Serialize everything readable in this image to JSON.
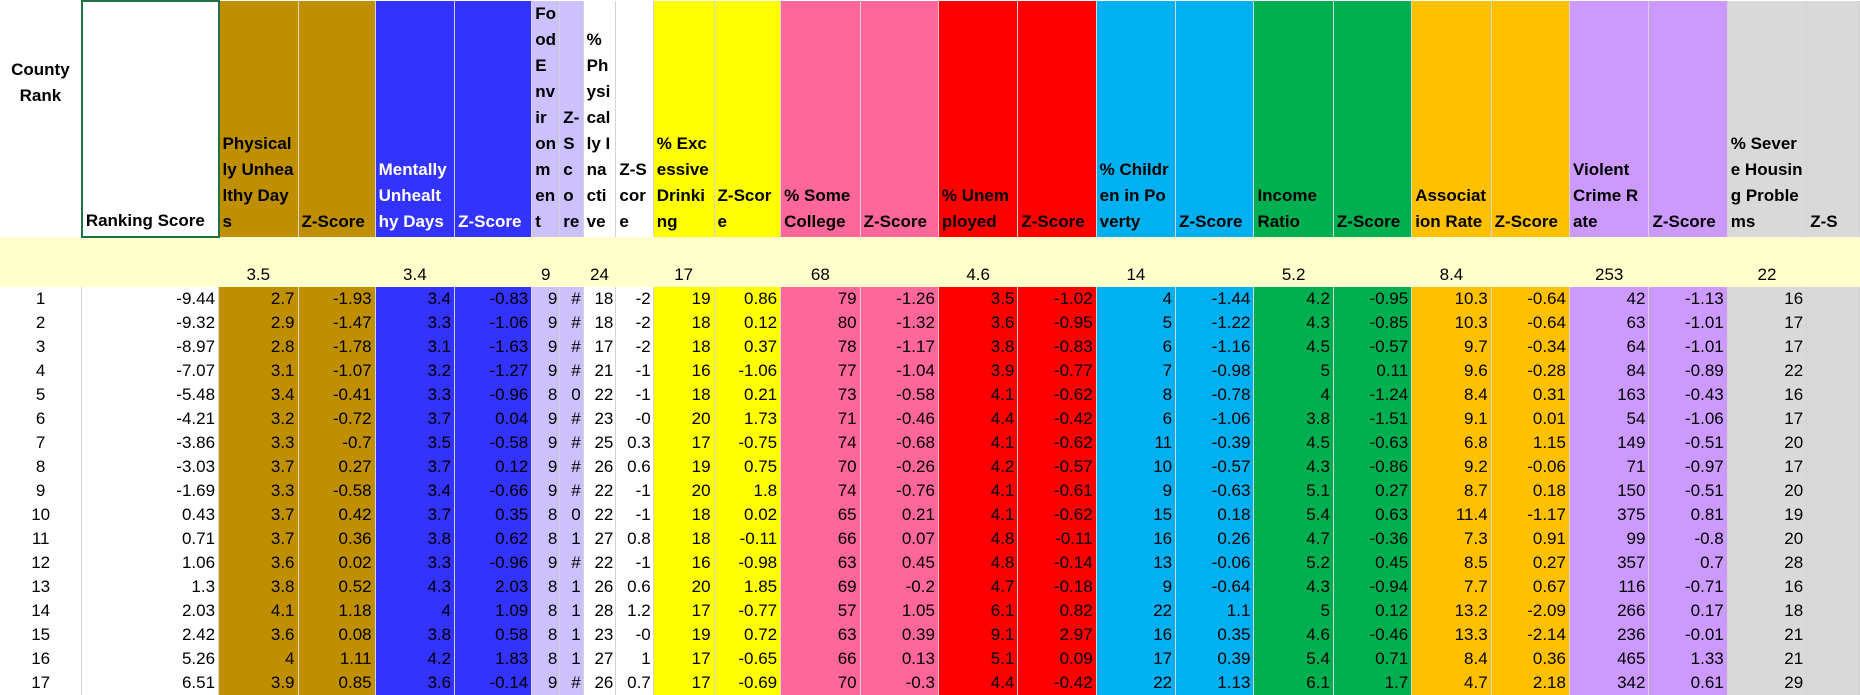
{
  "headers": {
    "county_rank": "County Rank",
    "ranking_score": "Ranking Score",
    "physically_unhealthy_days": "Physically Unhealthy Days",
    "mentally_unhealthy_days": "Mentally Unhealthy Days",
    "food_environment": "Food Environment",
    "z_score_narrow": "Z-Score",
    "pct_physically_inactive": "% Physically Inactive",
    "z_score": "Z-Score",
    "pct_excessive_drinking": "% Excessive Drinking",
    "pct_some_college": "% Some College",
    "pct_unemployed": "% Unemployed",
    "pct_children_in_poverty": "% Children in Poverty",
    "income_ratio": "Income Ratio",
    "association_rate": "Association Rate",
    "violent_crime_rate": "Violent Crime Rate",
    "pct_severe_housing_problems": "% Severe Housing Problems",
    "z_score_last": "Z-S"
  },
  "averages": {
    "physically_unhealthy_days": "3.5",
    "mentally_unhealthy_days": "3.4",
    "food_environment": "9",
    "pct_physically_inactive": "24",
    "pct_excessive_drinking": "17",
    "pct_some_college": "68",
    "pct_unemployed": "4.6",
    "pct_children_in_poverty": "14",
    "income_ratio": "5.2",
    "association_rate": "8.4",
    "violent_crime_rate": "253",
    "pct_severe_housing_problems": "22"
  },
  "rows": [
    [
      "1",
      "-9.44",
      "2.7",
      "-1.93",
      "3.4",
      "-0.83",
      "9",
      "#",
      "18",
      "-2",
      "19",
      "0.86",
      "79",
      "-1.26",
      "3.5",
      "-1.02",
      "4",
      "-1.44",
      "4.2",
      "-0.95",
      "10.3",
      "-0.64",
      "42",
      "-1.13",
      "16"
    ],
    [
      "2",
      "-9.32",
      "2.9",
      "-1.47",
      "3.3",
      "-1.06",
      "9",
      "#",
      "18",
      "-2",
      "18",
      "0.12",
      "80",
      "-1.32",
      "3.6",
      "-0.95",
      "5",
      "-1.22",
      "4.3",
      "-0.85",
      "10.3",
      "-0.64",
      "63",
      "-1.01",
      "17"
    ],
    [
      "3",
      "-8.97",
      "2.8",
      "-1.78",
      "3.1",
      "-1.63",
      "9",
      "#",
      "17",
      "-2",
      "18",
      "0.37",
      "78",
      "-1.17",
      "3.8",
      "-0.83",
      "6",
      "-1.16",
      "4.5",
      "-0.57",
      "9.7",
      "-0.34",
      "64",
      "-1.01",
      "17"
    ],
    [
      "4",
      "-7.07",
      "3.1",
      "-1.07",
      "3.2",
      "-1.27",
      "9",
      "#",
      "21",
      "-1",
      "16",
      "-1.06",
      "77",
      "-1.04",
      "3.9",
      "-0.77",
      "7",
      "-0.98",
      "5",
      "0.11",
      "9.6",
      "-0.28",
      "84",
      "-0.89",
      "22"
    ],
    [
      "5",
      "-5.48",
      "3.4",
      "-0.41",
      "3.3",
      "-0.96",
      "8",
      "0",
      "22",
      "-1",
      "18",
      "0.21",
      "73",
      "-0.58",
      "4.1",
      "-0.62",
      "8",
      "-0.78",
      "4",
      "-1.24",
      "8.4",
      "0.31",
      "163",
      "-0.43",
      "16"
    ],
    [
      "6",
      "-4.21",
      "3.2",
      "-0.72",
      "3.7",
      "0.04",
      "9",
      "#",
      "23",
      "-0",
      "20",
      "1.73",
      "71",
      "-0.46",
      "4.4",
      "-0.42",
      "6",
      "-1.06",
      "3.8",
      "-1.51",
      "9.1",
      "0.01",
      "54",
      "-1.06",
      "17"
    ],
    [
      "7",
      "-3.86",
      "3.3",
      "-0.7",
      "3.5",
      "-0.58",
      "9",
      "#",
      "25",
      "0.3",
      "17",
      "-0.75",
      "74",
      "-0.68",
      "4.1",
      "-0.62",
      "11",
      "-0.39",
      "4.5",
      "-0.63",
      "6.8",
      "1.15",
      "149",
      "-0.51",
      "20"
    ],
    [
      "8",
      "-3.03",
      "3.7",
      "0.27",
      "3.7",
      "0.12",
      "9",
      "#",
      "26",
      "0.6",
      "19",
      "0.75",
      "70",
      "-0.26",
      "4.2",
      "-0.57",
      "10",
      "-0.57",
      "4.3",
      "-0.86",
      "9.2",
      "-0.06",
      "71",
      "-0.97",
      "17"
    ],
    [
      "9",
      "-1.69",
      "3.3",
      "-0.58",
      "3.4",
      "-0.66",
      "9",
      "#",
      "22",
      "-1",
      "20",
      "1.8",
      "74",
      "-0.76",
      "4.1",
      "-0.61",
      "9",
      "-0.63",
      "5.1",
      "0.27",
      "8.7",
      "0.18",
      "150",
      "-0.51",
      "20"
    ],
    [
      "10",
      "0.43",
      "3.7",
      "0.42",
      "3.7",
      "0.35",
      "8",
      "0",
      "22",
      "-1",
      "18",
      "0.02",
      "65",
      "0.21",
      "4.1",
      "-0.62",
      "15",
      "0.18",
      "5.4",
      "0.63",
      "11.4",
      "-1.17",
      "375",
      "0.81",
      "19"
    ],
    [
      "11",
      "0.71",
      "3.7",
      "0.36",
      "3.8",
      "0.62",
      "8",
      "1",
      "27",
      "0.8",
      "18",
      "-0.11",
      "66",
      "0.07",
      "4.8",
      "-0.11",
      "16",
      "0.26",
      "4.7",
      "-0.36",
      "7.3",
      "0.91",
      "99",
      "-0.8",
      "20"
    ],
    [
      "12",
      "1.06",
      "3.6",
      "0.02",
      "3.3",
      "-0.96",
      "9",
      "#",
      "22",
      "-1",
      "16",
      "-0.98",
      "63",
      "0.45",
      "4.8",
      "-0.14",
      "13",
      "-0.06",
      "5.2",
      "0.45",
      "8.5",
      "0.27",
      "357",
      "0.7",
      "28"
    ],
    [
      "13",
      "1.3",
      "3.8",
      "0.52",
      "4.3",
      "2.03",
      "8",
      "1",
      "26",
      "0.6",
      "20",
      "1.85",
      "69",
      "-0.2",
      "4.7",
      "-0.18",
      "9",
      "-0.64",
      "4.3",
      "-0.94",
      "7.7",
      "0.67",
      "116",
      "-0.71",
      "16"
    ],
    [
      "14",
      "2.03",
      "4.1",
      "1.18",
      "4",
      "1.09",
      "8",
      "1",
      "28",
      "1.2",
      "17",
      "-0.77",
      "57",
      "1.05",
      "6.1",
      "0.82",
      "22",
      "1.1",
      "5",
      "0.12",
      "13.2",
      "-2.09",
      "266",
      "0.17",
      "18"
    ],
    [
      "15",
      "2.42",
      "3.6",
      "0.08",
      "3.8",
      "0.58",
      "8",
      "1",
      "23",
      "-0",
      "19",
      "0.72",
      "63",
      "0.39",
      "9.1",
      "2.97",
      "16",
      "0.35",
      "4.6",
      "-0.46",
      "13.3",
      "-2.14",
      "236",
      "-0.01",
      "21"
    ],
    [
      "16",
      "5.26",
      "4",
      "1.11",
      "4.2",
      "1.83",
      "8",
      "1",
      "27",
      "1",
      "17",
      "-0.65",
      "66",
      "0.13",
      "5.1",
      "0.09",
      "17",
      "0.39",
      "5.4",
      "0.71",
      "8.4",
      "0.36",
      "465",
      "1.33",
      "21"
    ],
    [
      "17",
      "6.51",
      "3.9",
      "0.85",
      "3.6",
      "-0.14",
      "9",
      "#",
      "26",
      "0.7",
      "17",
      "-0.69",
      "70",
      "-0.3",
      "4.4",
      "-0.42",
      "22",
      "1.13",
      "6.1",
      "1.7",
      "4.7",
      "2.18",
      "342",
      "0.61",
      "29"
    ]
  ],
  "colors": {
    "physical": "#bf8f00",
    "mental": "#3333ff",
    "food": "#ccc0ff",
    "drinking": "#ffff00",
    "college": "#ff6699",
    "unemployed": "#ff0000",
    "poverty": "#00b0f0",
    "income": "#00b050",
    "association": "#ffc000",
    "crime": "#cc99ff",
    "housing": "#d9d9d9",
    "average_row": "#ffffcc"
  }
}
